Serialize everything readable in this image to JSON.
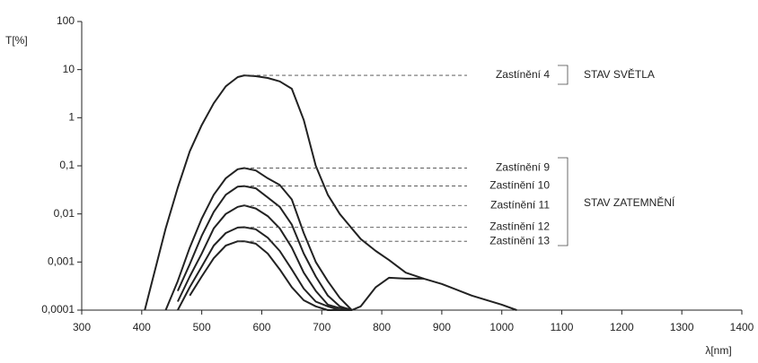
{
  "chart_data": {
    "type": "line",
    "ylabel": "T[%]",
    "xlabel": "λ[nm]",
    "log_y": true,
    "color": "#222222",
    "annotations": [
      "STAV SVĚTLA",
      "STAV ZATEMNĚNÍ"
    ],
    "xlim": [
      300,
      1400
    ],
    "xticks": [
      300,
      400,
      500,
      600,
      700,
      800,
      900,
      1000,
      1100,
      1200,
      1300,
      1400
    ],
    "ylim": [
      0.0001,
      100
    ],
    "yticks": [
      {
        "value": 0.0001,
        "label": "0,0001"
      },
      {
        "value": 0.001,
        "label": "0,001"
      },
      {
        "value": 0.01,
        "label": "0,01"
      },
      {
        "value": 0.1,
        "label": "0,1"
      },
      1,
      10,
      100
    ],
    "x": [
      405,
      440,
      460,
      480,
      500,
      520,
      540,
      560,
      571,
      590,
      610,
      630,
      650,
      670,
      690,
      710,
      730,
      750,
      765,
      790,
      812,
      840,
      870,
      900,
      950,
      1000,
      1025
    ],
    "series": [
      {
        "name": "Zastínění 4",
        "values": [
          0.0001,
          0.005,
          0.035,
          0.2,
          0.7,
          2,
          4.5,
          7,
          7.6,
          7.3,
          6.7,
          5.7,
          4,
          0.9,
          0.1,
          0.025,
          0.01,
          0.005,
          0.003,
          0.0017,
          0.0011,
          0.0006,
          0.00045,
          0.00035,
          0.0002,
          0.00013,
          0.0001
        ]
      },
      {
        "name": "Zastínění 9",
        "values": [
          null,
          0.0001,
          0.0004,
          0.002,
          0.008,
          0.025,
          0.055,
          0.085,
          0.09,
          0.08,
          0.055,
          0.04,
          0.02,
          0.004,
          0.001,
          0.0004,
          0.00018,
          0.0001,
          0.00012,
          0.0003,
          0.00047,
          0.00045,
          0.00045,
          null,
          null,
          null,
          null
        ]
      },
      {
        "name": "Zastínění 10",
        "values": [
          null,
          null,
          0.00025,
          0.0009,
          0.0035,
          0.011,
          0.025,
          0.037,
          0.038,
          0.034,
          0.022,
          0.014,
          0.006,
          0.0015,
          0.0005,
          0.0002,
          0.00012,
          0.0001,
          null,
          null,
          null,
          null,
          null,
          null,
          null,
          null,
          null
        ]
      },
      {
        "name": "Zastínění 11",
        "values": [
          null,
          null,
          0.00015,
          0.0005,
          0.0015,
          0.005,
          0.01,
          0.014,
          0.015,
          0.013,
          0.009,
          0.005,
          0.002,
          0.0006,
          0.00025,
          0.00013,
          0.00011,
          0.0001,
          null,
          null,
          null,
          null,
          null,
          null,
          null,
          null,
          null
        ]
      },
      {
        "name": "Zastínění 12",
        "values": [
          null,
          null,
          0.0001,
          0.0003,
          0.0008,
          0.0022,
          0.004,
          0.0052,
          0.0053,
          0.0048,
          0.0032,
          0.0017,
          0.0007,
          0.00028,
          0.00015,
          0.00012,
          0.0001,
          0.0001,
          null,
          null,
          null,
          null,
          null,
          null,
          null,
          null,
          null
        ]
      },
      {
        "name": "Zastínění 13",
        "values": [
          null,
          null,
          null,
          0.0002,
          0.0005,
          0.0012,
          0.0022,
          0.0027,
          0.0027,
          0.0024,
          0.0015,
          0.0007,
          0.0003,
          0.00016,
          0.00012,
          0.0001,
          0.0001,
          0.0001,
          null,
          null,
          null,
          null,
          null,
          null,
          null,
          null,
          null
        ]
      }
    ]
  }
}
